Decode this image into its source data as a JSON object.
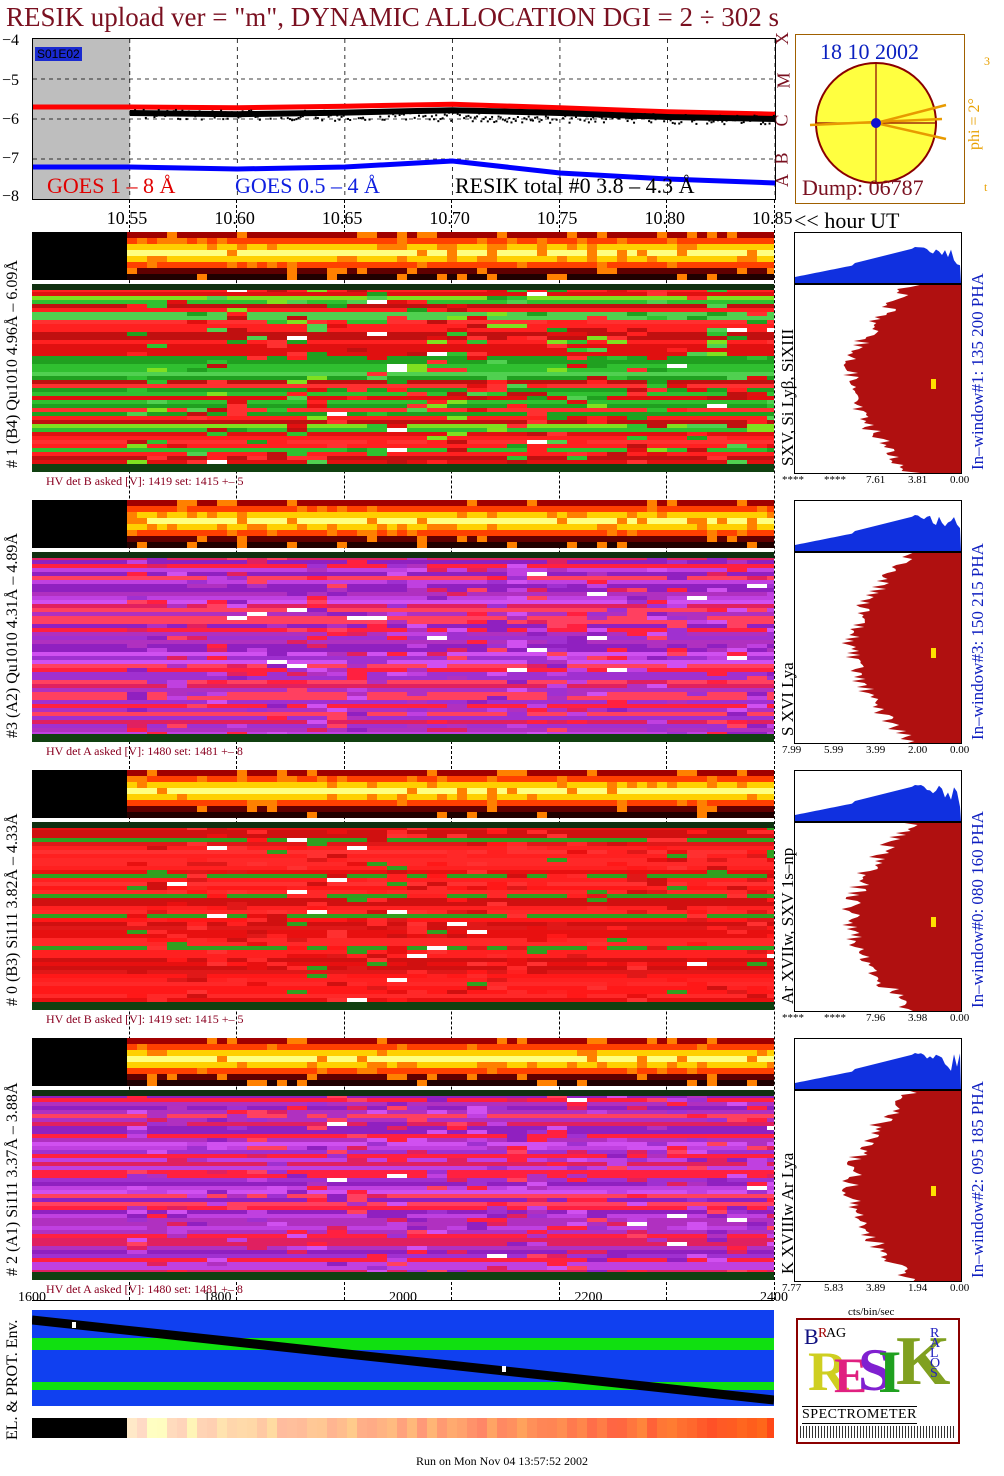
{
  "header": {
    "title": "RESIK upload ver = \"m\", DYNAMIC ALLOCATION  DGI =   2 ÷ 302 s"
  },
  "goes": {
    "tag": "S01E02",
    "legend": [
      "GOES 1 – 8 Å",
      "GOES 0.5 – 4 Å",
      "RESIK total #0  3.8 – 4.3 Å"
    ],
    "y_ticks": [
      "−4",
      "−5",
      "−6",
      "−7",
      "−8"
    ],
    "class_letters": [
      "X",
      "M",
      "C",
      "B",
      "A"
    ],
    "colors": {
      "goes_long": "#ff0000",
      "goes_short": "#0000ff",
      "resik": "#000000",
      "gap": "#bebebe"
    }
  },
  "sun": {
    "date": "18 10 2002",
    "dump": "Dump: 06787",
    "phi_label": "phi =  2°",
    "phi_scale_top": "3",
    "phi_scale_bottom": "t"
  },
  "time_axis": {
    "ticks": [
      "10.55",
      "10.60",
      "10.65",
      "10.70",
      "10.75",
      "10.80",
      "10.85"
    ],
    "unit": "<< hour UT"
  },
  "channels": [
    {
      "left_label": "# 1 (B4) Qu1010 4.96Å – 6.09Å",
      "line_label": "SXV, Si Lyβ, SiXIII",
      "window_label": "In–window#1:  135 200 PHA",
      "hv": "HV det B asked [V]:  1419 set:  1415 +–    5",
      "pha_ticks": [
        "****",
        "****",
        "7.61",
        "3.81",
        "0.00"
      ],
      "palette": "green"
    },
    {
      "left_label": "#3 (A2) Qu1010  4.31Å – 4.89Å",
      "line_label": "S XVI Lya",
      "window_label": "In–window#3:  150 215 PHA",
      "hv": "HV det A asked [V]:  1480 set:  1481 +–    8",
      "pha_ticks": [
        "7.99",
        "5.99",
        "3.99",
        "2.00",
        "0.00"
      ],
      "palette": "purple"
    },
    {
      "left_label": "# 0 (B3) Si111  3.82Å – 4.33Å",
      "line_label": "Ar XVIIw,  SXV 1s–np",
      "window_label": "In–window#0:  080 160 PHA",
      "hv": "HV det B asked [V]:  1419 set:  1415 +–    5",
      "pha_ticks": [
        "****",
        "****",
        "7.96",
        "3.98",
        "0.00"
      ],
      "palette": "red"
    },
    {
      "left_label": "# 2 (A1) Si111  3.37Å – 3.88Å",
      "line_label": "K XVIIIw  Ar Lya",
      "window_label": "In–window#2:  095 185 PHA",
      "hv": "HV det A asked [V]:  1480 set:  1481 +–    8",
      "pha_ticks": [
        "7.77",
        "5.83",
        "3.89",
        "1.94",
        "0.00"
      ],
      "palette": "purple"
    }
  ],
  "pha_unit": "cts/bin/sec",
  "env": {
    "label": "EL. & PROT. Env.",
    "ticks": [
      "1600",
      "1800",
      "2000",
      "2200",
      "2400"
    ]
  },
  "logo": {
    "letters": [
      "R",
      "E",
      "S",
      "I",
      "K"
    ],
    "small": [
      "B",
      "R",
      "A",
      "G",
      "S",
      "O",
      "L",
      "A",
      "R"
    ],
    "word": "SPECTROMETER"
  },
  "footer": "Run on Mon Nov 04 13:57:52 2002",
  "chart_data": {
    "type": "line",
    "title": "RESIK upload ver = \"m\", DYNAMIC ALLOCATION  DGI =   2 ÷ 302 s",
    "xlabel": "<< hour UT",
    "ylabel": "",
    "xlim": [
      10.505,
      10.85
    ],
    "ylim": [
      -8,
      -4
    ],
    "x": [
      10.55,
      10.6,
      10.65,
      10.7,
      10.75,
      10.8,
      10.85
    ],
    "series": [
      {
        "name": "GOES 1 – 8 Å",
        "values": [
          -5.7,
          -5.72,
          -5.68,
          -5.63,
          -5.72,
          -5.82,
          -5.88
        ]
      },
      {
        "name": "GOES 0.5 – 4 Å",
        "values": [
          -7.2,
          -7.25,
          -7.2,
          -7.05,
          -7.35,
          -7.5,
          -7.6
        ]
      },
      {
        "name": "RESIK total #0  3.8 – 4.3 Å",
        "values": [
          -5.85,
          -5.88,
          -5.84,
          -5.78,
          -5.85,
          -5.95,
          -6.0
        ]
      }
    ]
  }
}
